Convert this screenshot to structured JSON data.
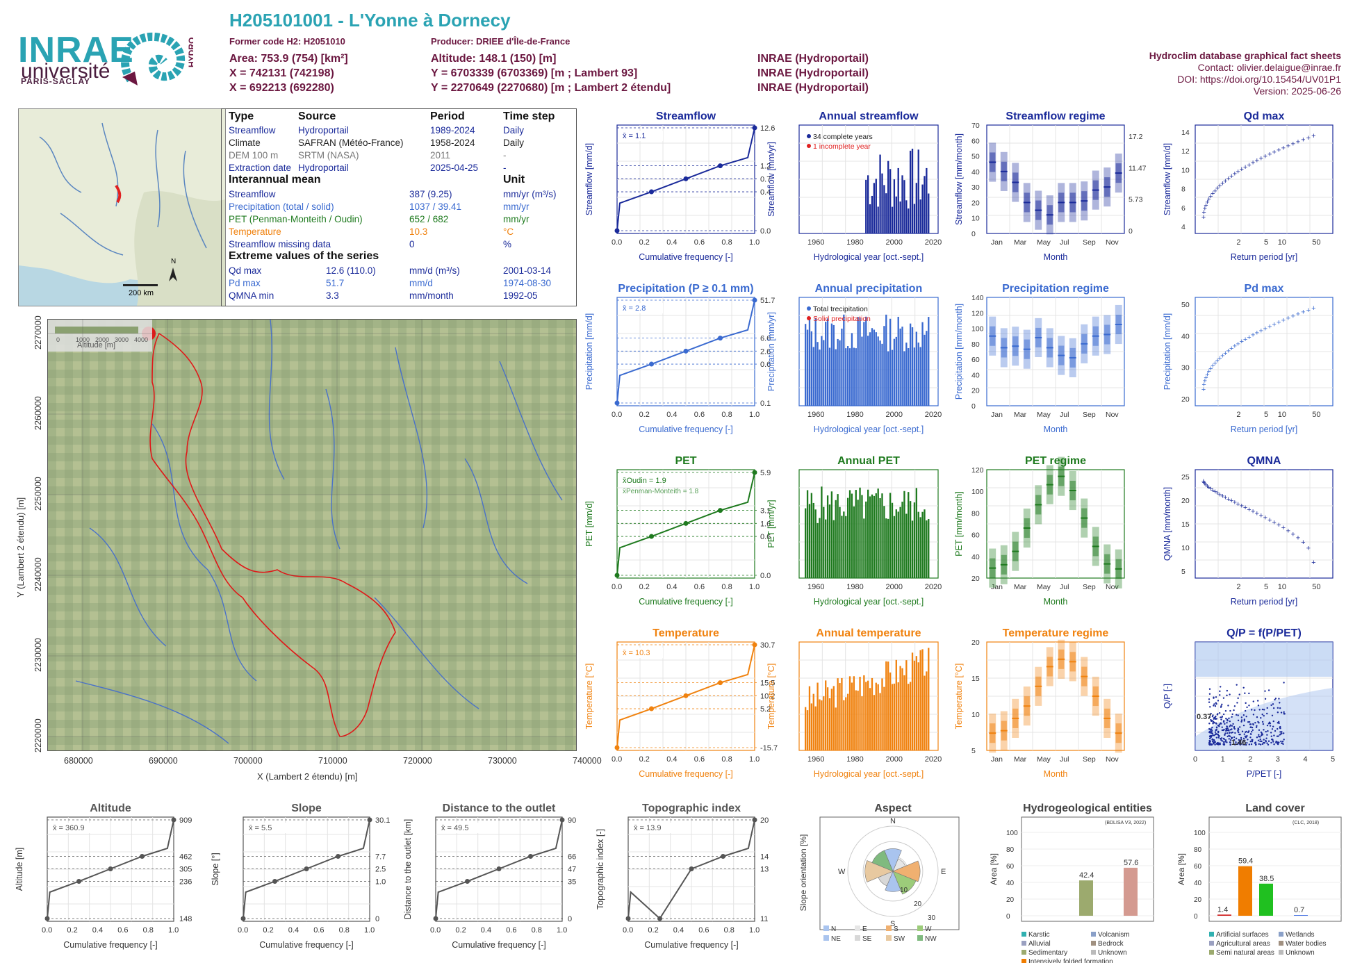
{
  "logo": {
    "inrae": "INRAE",
    "univ": "université",
    "ps": "PARIS-SACLAY",
    "hydro": "HYDRO"
  },
  "header": {
    "title": "H205101001 - L'Yonne à Dornecy",
    "former_code": "Former code H2: H2051010",
    "producer": "Producer: DRIEE d'Île-de-France",
    "area": "Area: 753.9 (754) [km²]",
    "altitude": "Altitude: 148.1 (150) [m]",
    "x93": "X = 742131 (742198)",
    "y93": "Y = 6703339 (6703369) [m ; Lambert 93]",
    "x2": "X = 692213 (692280)",
    "y2": "Y = 2270649 (2270680) [m ; Lambert 2 étendu]",
    "src1": "INRAE (Hydroportail)",
    "src2": "INRAE (Hydroportail)",
    "src3": "INRAE (Hydroportail)"
  },
  "rightinfo": {
    "db": "Hydroclim database graphical fact sheets",
    "contact": "Contact: olivier.delaigue@inrae.fr",
    "doi": "DOI: https://doi.org/10.15454/UV01P1",
    "version": "Version: 2025-06-26"
  },
  "locmap": {
    "scale": "200 km",
    "north": "N"
  },
  "infotable": {
    "h": [
      "Type",
      "Source",
      "Period",
      "Time step"
    ],
    "rows": [
      {
        "a": "Streamflow",
        "b": "Hydroportail",
        "c": "1989-2024",
        "d": "Daily",
        "col": "#1a2a9a"
      },
      {
        "a": "Climate",
        "b": "SAFRAN (Météo-France)",
        "c": "1958-2024",
        "d": "Daily",
        "col": "#222"
      },
      {
        "a": "DEM 100 m",
        "b": "SRTM (NASA)",
        "c": "2011",
        "d": "-",
        "col": "#777"
      },
      {
        "a": "Extraction date",
        "b": "Hydroportail",
        "c": "2025-04-25",
        "d": "-",
        "col": "#1a2a9a"
      }
    ],
    "mean_h": "Interannual mean",
    "unit_h": "Unit",
    "means": [
      {
        "a": "Streamflow",
        "v": "387 (9.25)",
        "u": "mm/yr (m³/s)",
        "col": "#1a2a9a"
      },
      {
        "a": "Precipitation (total / solid)",
        "v": "1037 / 39.41",
        "u": "mm/yr",
        "col": "#3a6ad0"
      },
      {
        "a": "PET (Penman-Monteith / Oudin)",
        "v": "652 / 682",
        "u": "mm/yr",
        "col": "#1e7a1e"
      },
      {
        "a": "Temperature",
        "v": "10.3",
        "u": "°C",
        "col": "#f0820f"
      },
      {
        "a": "Streamflow missing data",
        "v": "0",
        "u": "%",
        "col": "#1a2a9a"
      }
    ],
    "ext_h": "Extreme values of the series",
    "ext": [
      {
        "a": "Qd max",
        "v": "12.6 (110.0)",
        "u": "mm/d (m³/s)",
        "d": "2001-03-14",
        "col": "#1a2a9a"
      },
      {
        "a": "Pd max",
        "v": "51.7",
        "u": "mm/d",
        "d": "1974-08-30",
        "col": "#3a6ad0"
      },
      {
        "a": "QMNA min",
        "v": "3.3",
        "u": "mm/month",
        "d": "1992-05",
        "col": "#1a2a9a"
      }
    ]
  },
  "bigmap": {
    "legend_title": "Altitude [m]",
    "legend_ticks": [
      "0",
      "1000",
      "2000",
      "3000",
      "4000"
    ],
    "xlabel": "X (Lambert 2 étendu) [m]",
    "ylabel": "Y (Lambert 2 étendu) [m]",
    "xticks": [
      "680000",
      "690000",
      "700000",
      "710000",
      "720000",
      "730000",
      "740000"
    ],
    "yticks": [
      "2220000",
      "2230000",
      "2240000",
      "2250000",
      "2260000",
      "2270000"
    ]
  },
  "chart_data": [
    {
      "type": "line",
      "title": "Streamflow",
      "color": "#1a2a9a",
      "xlabel": "Cumulative frequency [-]",
      "ylabel": "Streamflow [mm/d]",
      "mean": "x̄ = 1.1",
      "marks": [
        "12.6",
        "1.2",
        "0.7",
        "0.4",
        "0.0"
      ]
    },
    {
      "type": "bar",
      "title": "Annual streamflow",
      "color": "#1a2a9a",
      "xlabel": "Hydrological year [oct.-sept.]",
      "ylabel": "Streamflow [mm/yr]",
      "legend": [
        "34 complete years",
        "1 incomplete year"
      ]
    },
    {
      "type": "box",
      "title": "Streamflow regime",
      "color": "#1a2a9a",
      "xlabel": "Month",
      "ylabel": "Streamflow [mm/month]",
      "y2": [
        "17.2",
        "11.47",
        "5.73",
        "0"
      ],
      "yticks": [
        "0",
        "10",
        "20",
        "30",
        "40",
        "50",
        "60",
        "70"
      ],
      "median": [
        46,
        40,
        33,
        20,
        15,
        12,
        20,
        20,
        21,
        28,
        30,
        39
      ]
    },
    {
      "type": "scatter",
      "title": "Qd max",
      "color": "#1a2a9a",
      "xlabel": "Return period [yr]",
      "ylabel": "Streamflow [mm/d]",
      "yticks": [
        "4",
        "6",
        "8",
        "10",
        "12",
        "14"
      ]
    },
    {
      "type": "line",
      "title": "Precipitation (P ≥ 0.1 mm)",
      "color": "#3a6ad0",
      "xlabel": "Cumulative frequency [-]",
      "ylabel": "Precipitation [mm/d]",
      "mean": "x̄ = 2.8",
      "marks": [
        "51.7",
        "6.6",
        "2.6",
        "0.6",
        "0.1"
      ]
    },
    {
      "type": "bar",
      "title": "Annual precipitation",
      "color": "#3a6ad0",
      "xlabel": "Hydrological year [oct.-sept.]",
      "ylabel": "Precipitation [mm/yr]",
      "legend": [
        "Total trecipitation",
        "Solid precipitation"
      ]
    },
    {
      "type": "box",
      "title": "Precipitation regime",
      "color": "#3a6ad0",
      "xlabel": "Month",
      "ylabel": "Precipitation [mm/month]",
      "yticks": [
        "0",
        "20",
        "40",
        "60",
        "80",
        "100",
        "120",
        "140"
      ],
      "median": [
        90,
        75,
        77,
        73,
        88,
        75,
        65,
        62,
        80,
        90,
        92,
        105
      ]
    },
    {
      "type": "scatter",
      "title": "Pd max",
      "color": "#3a6ad0",
      "xlabel": "Return period [yr]",
      "ylabel": "Precipitation [mm/d]",
      "yticks": [
        "20",
        "30",
        "40",
        "50"
      ]
    },
    {
      "type": "line",
      "title": "PET",
      "color": "#1e7a1e",
      "xlabel": "Cumulative frequency [-]",
      "ylabel": "PET [mm/d]",
      "mean": "x̄Oudin = 1.9",
      "mean2": "x̄Penman-Monteith = 1.8",
      "marks": [
        "5.9",
        "3.1",
        "1.6",
        "0.6",
        "0.0"
      ]
    },
    {
      "type": "bar",
      "title": "Annual PET",
      "color": "#1e7a1e",
      "xlabel": "Hydrological year [oct.-sept.]",
      "ylabel": "PET [mm/yr]"
    },
    {
      "type": "box",
      "title": "PET regime",
      "color": "#1e7a1e",
      "xlabel": "Month",
      "ylabel": "PET [mm/month]",
      "yticks": [
        "20",
        "40",
        "60",
        "80",
        "100",
        "120"
      ],
      "median": [
        12,
        16,
        32,
        60,
        88,
        112,
        122,
        105,
        72,
        38,
        17,
        11
      ]
    },
    {
      "type": "scatter",
      "title": "QMNA",
      "color": "#1a2a9a",
      "xlabel": "Return period [yr]",
      "ylabel": "QMNA [mm/month]",
      "yticks": [
        "5",
        "10",
        "15",
        "20",
        "25"
      ]
    },
    {
      "type": "line",
      "title": "Temperature",
      "color": "#f0820f",
      "xlabel": "Cumulative frequency [-]",
      "ylabel": "Temperature [°C]",
      "mean": "x̄ = 10.3",
      "marks": [
        "30.7",
        "15.5",
        "10.2",
        "5.2",
        "-15.7"
      ]
    },
    {
      "type": "bar",
      "title": "Annual temperature",
      "color": "#f0820f",
      "xlabel": "Hydrological year [oct.-sept.]",
      "ylabel": "Temperature [°C]"
    },
    {
      "type": "box",
      "title": "Temperature regime",
      "color": "#f0820f",
      "xlabel": "Month",
      "ylabel": "Temperature [°C]",
      "yticks": [
        "5",
        "10",
        "15",
        "20"
      ],
      "median": [
        3.5,
        4,
        6.5,
        9,
        13,
        17,
        18.5,
        18,
        15,
        11,
        6.5,
        3.5
      ]
    },
    {
      "type": "scatter",
      "title": "Q/P = f(P/PET)",
      "color": "#1a2a9a",
      "xlabel": "P/PET [-]",
      "ylabel": "Q/P [-]",
      "ann1": "0.37",
      "ann2": "1.46"
    },
    {
      "type": "line",
      "title": "Altitude",
      "color": "#555",
      "xlabel": "Cumulative frequency [-]",
      "ylabel": "Altitude [m]",
      "mean": "x̄ = 360.9",
      "marks": [
        "909",
        "462",
        "305",
        "236",
        "148"
      ]
    },
    {
      "type": "line",
      "title": "Slope",
      "color": "#555",
      "xlabel": "Cumulative frequency [-]",
      "ylabel": "Slope [°]",
      "mean": "x̄ = 5.5",
      "marks": [
        "30.1",
        "7.7",
        "2.5",
        "1.0",
        "0"
      ]
    },
    {
      "type": "line",
      "title": "Distance to the outlet",
      "color": "#555",
      "xlabel": "Cumulative frequency [-]",
      "ylabel": "Distance to the outlet [km]",
      "mean": "x̄ = 49.5",
      "marks": [
        "90",
        "66",
        "47",
        "35",
        "0"
      ]
    },
    {
      "type": "line",
      "title": "Topographic index",
      "color": "#555",
      "xlabel": "Cumulative frequency [-]",
      "ylabel": "Topographic index [-]",
      "mean": "x̄ = 13.9",
      "marks": [
        "20",
        "14",
        "13",
        "11"
      ]
    },
    {
      "type": "pie",
      "title": "Aspect",
      "ylabel": "Slope orientation [%]",
      "dirs": [
        "N",
        "E",
        "S",
        "W"
      ],
      "rings": [
        "10",
        "20",
        "30"
      ],
      "legend": [
        "N",
        "E",
        "S",
        "W",
        "NE",
        "SE",
        "SW",
        "NW"
      ]
    },
    {
      "type": "bar",
      "title": "Hydrogeological entities",
      "ylabel": "Area [%]",
      "source": "(BDLISA V3, 2022)",
      "values": [
        {
          "name": "Sedimentary",
          "v": "42.4",
          "color": "#9caa6e"
        },
        {
          "name": "Unknown",
          "v": "57.6",
          "color": "#d49a90"
        }
      ],
      "legend": [
        "Karstic",
        "Volcanism",
        "Alluvial",
        "Bedrock",
        "Sedimentary",
        "Unknown",
        "Intensively folded formation"
      ]
    },
    {
      "type": "bar",
      "title": "Land cover",
      "ylabel": "Area [%]",
      "source": "(CLC, 2018)",
      "values": [
        {
          "v": "1.4",
          "color": "#d02020"
        },
        {
          "v": "59.4",
          "color": "#f07d00"
        },
        {
          "v": "38.5",
          "color": "#20c020"
        },
        {
          "v": "0.7",
          "color": "#3060e0"
        }
      ],
      "legend": [
        "Artificial surfaces",
        "Wetlands",
        "Agricultural areas",
        "Water bodies",
        "Semi natural areas",
        "Unknown"
      ]
    }
  ],
  "common": {
    "cf_ticks": [
      "0.0",
      "0.2",
      "0.4",
      "0.6",
      "0.8",
      "1.0"
    ],
    "years": [
      "1960",
      "1980",
      "2000",
      "2020"
    ],
    "months": [
      "Jan",
      "Mar",
      "May",
      "Jul",
      "Sep",
      "Nov"
    ],
    "rp": [
      "2",
      "5",
      "10",
      "50"
    ],
    "pp": [
      "0",
      "1",
      "2",
      "3",
      "4",
      "5"
    ]
  }
}
